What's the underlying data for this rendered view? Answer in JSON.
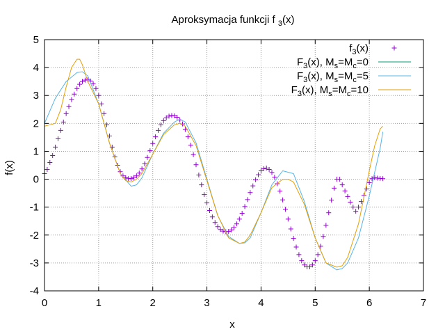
{
  "chart_data": {
    "type": "line",
    "title": {
      "main": "Aproksymacja funkcji f",
      "sub": "3",
      "tail": "(x)"
    },
    "xlabel": "x",
    "ylabel": "f(x)",
    "xlim": [
      0,
      7
    ],
    "ylim": [
      -4,
      5
    ],
    "x_ticks": [
      "0",
      "1",
      "2",
      "3",
      "4",
      "5",
      "6",
      "7"
    ],
    "y_ticks": [
      "-4",
      "-3",
      "-2",
      "-1",
      "0",
      "1",
      "2",
      "3",
      "4",
      "5"
    ],
    "grid": true,
    "legend_placement": "top-right",
    "series": [
      {
        "name": "f 3 (x)",
        "legend": {
          "a": "f",
          "sub1": "3",
          "b": "(x)",
          "sub2": "",
          "c": ""
        },
        "style": "points",
        "marker": "+",
        "color": "#9400d3",
        "x": [
          0,
          0.05,
          0.1,
          0.15,
          0.2,
          0.25,
          0.3,
          0.35,
          0.4,
          0.45,
          0.5,
          0.55,
          0.6,
          0.65,
          0.7,
          0.75,
          0.8,
          0.85,
          0.9,
          0.95,
          1.0,
          1.05,
          1.1,
          1.15,
          1.2,
          1.25,
          1.3,
          1.35,
          1.4,
          1.45,
          1.5,
          1.55,
          1.6,
          1.65,
          1.7,
          1.75,
          1.8,
          1.85,
          1.9,
          1.95,
          2.0,
          2.05,
          2.1,
          2.15,
          2.2,
          2.25,
          2.3,
          2.35,
          2.4,
          2.45,
          2.5,
          2.55,
          2.6,
          2.65,
          2.7,
          2.75,
          2.8,
          2.85,
          2.9,
          2.95,
          3.0,
          3.05,
          3.1,
          3.15,
          3.2,
          3.25,
          3.3,
          3.35,
          3.4,
          3.45,
          3.5,
          3.55,
          3.6,
          3.65,
          3.7,
          3.75,
          3.8,
          3.85,
          3.9,
          3.95,
          4.0,
          4.05,
          4.1,
          4.15,
          4.2,
          4.25,
          4.3,
          4.35,
          4.4,
          4.45,
          4.5,
          4.55,
          4.6,
          4.65,
          4.7,
          4.75,
          4.8,
          4.85,
          4.9,
          4.95,
          5.0,
          5.05,
          5.1,
          5.15,
          5.2,
          5.25,
          5.3,
          5.35,
          5.4,
          5.45,
          5.5,
          5.55,
          5.6,
          5.65,
          5.7,
          5.75,
          5.8,
          5.85,
          5.9,
          5.95,
          6.0,
          6.05,
          6.1,
          6.15,
          6.2,
          6.25
        ],
        "y": [
          0.2,
          0.35,
          0.6,
          0.85,
          1.15,
          1.45,
          1.75,
          2.05,
          2.35,
          2.6,
          2.85,
          3.05,
          3.25,
          3.4,
          3.5,
          3.55,
          3.56,
          3.52,
          3.42,
          3.25,
          3.0,
          2.7,
          2.35,
          1.95,
          1.55,
          1.15,
          0.8,
          0.5,
          0.27,
          0.12,
          0.05,
          0.02,
          0.03,
          0.06,
          0.12,
          0.22,
          0.37,
          0.55,
          0.78,
          1.02,
          1.28,
          1.52,
          1.75,
          1.95,
          2.1,
          2.2,
          2.26,
          2.28,
          2.27,
          2.22,
          2.12,
          1.98,
          1.78,
          1.52,
          1.22,
          0.88,
          0.52,
          0.15,
          -0.2,
          -0.55,
          -0.85,
          -1.12,
          -1.35,
          -1.55,
          -1.7,
          -1.8,
          -1.86,
          -1.88,
          -1.87,
          -1.82,
          -1.73,
          -1.6,
          -1.43,
          -1.22,
          -0.98,
          -0.73,
          -0.48,
          -0.24,
          -0.02,
          0.16,
          0.3,
          0.38,
          0.4,
          0.35,
          0.24,
          0.07,
          -0.16,
          -0.43,
          -0.74,
          -1.08,
          -1.43,
          -1.78,
          -2.12,
          -2.43,
          -2.7,
          -2.92,
          -3.07,
          -3.14,
          -3.14,
          -3.07,
          -2.92,
          -2.7,
          -2.4,
          -2.05,
          -1.65,
          -1.2,
          -0.75,
          -0.32,
          0.0,
          0.0,
          -0.2,
          -0.42,
          -0.62,
          -0.82,
          -1.0,
          -1.15,
          -1.0,
          -0.8,
          -0.58,
          -0.35,
          -0.12,
          0.02,
          0.05,
          0.04,
          0.03,
          0.02
        ]
      },
      {
        "name": "F 3 (x), M s =M c =0",
        "legend": {
          "a": "F",
          "sub1": "3",
          "b": "(x), M",
          "sub2": "s",
          "c": "=M",
          "sub3": "c",
          "d": "=0"
        },
        "style": "line",
        "color": "#009e73",
        "x": [],
        "y": []
      },
      {
        "name": "F 3 (x), M s =M c =5",
        "legend": {
          "a": "F",
          "sub1": "3",
          "b": "(x), M",
          "sub2": "s",
          "c": "=M",
          "sub3": "c",
          "d": "=5"
        },
        "style": "line",
        "color": "#56b4e9",
        "x": [
          0,
          0.2,
          0.4,
          0.6,
          0.7,
          0.8,
          1.0,
          1.2,
          1.4,
          1.6,
          1.7,
          1.8,
          2.0,
          2.2,
          2.4,
          2.5,
          2.6,
          2.8,
          3.0,
          3.2,
          3.4,
          3.6,
          3.7,
          3.8,
          4.0,
          4.2,
          4.4,
          4.6,
          4.8,
          5.0,
          5.2,
          5.4,
          5.5,
          5.6,
          5.8,
          6.0,
          6.2,
          6.25
        ],
        "y": [
          2.0,
          2.9,
          3.5,
          3.82,
          3.85,
          3.7,
          2.7,
          1.3,
          0.2,
          -0.25,
          -0.2,
          0.05,
          0.9,
          1.65,
          2.05,
          2.15,
          2.05,
          1.3,
          0.0,
          -1.3,
          -2.05,
          -2.3,
          -2.28,
          -2.1,
          -1.2,
          -0.2,
          0.3,
          0.2,
          -0.8,
          -2.1,
          -3.0,
          -3.25,
          -3.2,
          -3.0,
          -2.1,
          -0.6,
          1.1,
          1.7
        ]
      },
      {
        "name": "F 3 (x), M s =M c =10",
        "legend": {
          "a": "F",
          "sub1": "3",
          "b": "(x), M",
          "sub2": "s",
          "c": "=M",
          "sub3": "c",
          "d": "=10"
        },
        "style": "line",
        "color": "#e69f00",
        "x": [
          0,
          0.1,
          0.2,
          0.3,
          0.4,
          0.5,
          0.6,
          0.65,
          0.7,
          0.8,
          0.9,
          1.0,
          1.2,
          1.4,
          1.5,
          1.6,
          1.7,
          1.8,
          2.0,
          2.2,
          2.4,
          2.5,
          2.6,
          2.8,
          3.0,
          3.2,
          3.4,
          3.6,
          3.7,
          3.8,
          4.0,
          4.2,
          4.4,
          4.5,
          4.6,
          4.8,
          5.0,
          5.2,
          5.4,
          5.5,
          5.6,
          5.8,
          6.0,
          6.1,
          6.2,
          6.25
        ],
        "y": [
          1.9,
          1.95,
          2.0,
          2.5,
          3.3,
          4.0,
          4.3,
          4.3,
          4.1,
          3.5,
          3.1,
          2.7,
          1.3,
          0.2,
          -0.05,
          -0.1,
          0.0,
          0.2,
          0.9,
          1.6,
          1.95,
          2.0,
          1.9,
          1.2,
          -0.05,
          -1.3,
          -2.1,
          -2.3,
          -2.25,
          -2.0,
          -1.2,
          -0.3,
          0.0,
          0.0,
          -0.1,
          -0.9,
          -2.1,
          -3.0,
          -3.15,
          -3.1,
          -2.8,
          -1.6,
          0.3,
          1.2,
          1.8,
          1.9
        ]
      }
    ]
  }
}
